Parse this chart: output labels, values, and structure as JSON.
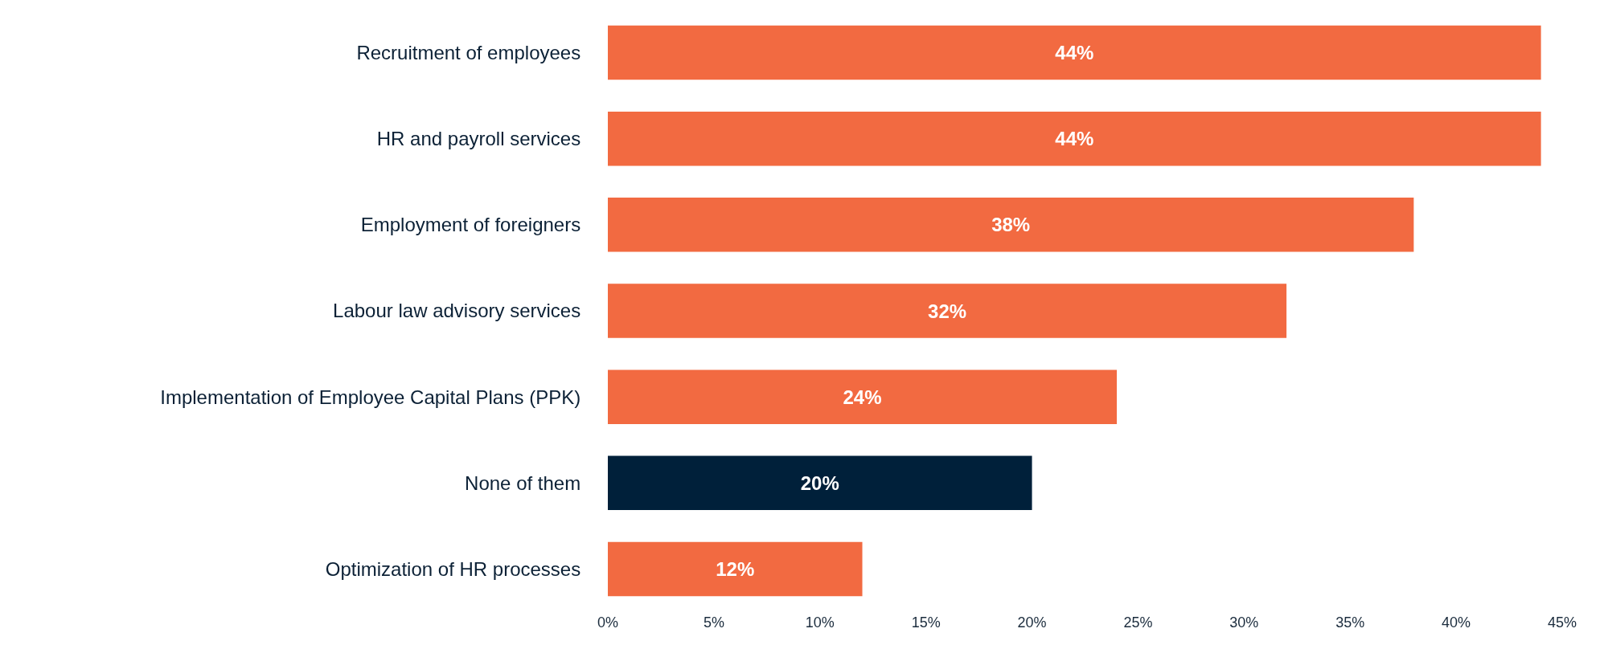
{
  "chart_data": {
    "type": "bar",
    "orientation": "horizontal",
    "categories": [
      "Recruitment of employees",
      "HR and payroll services",
      "Employment of foreigners",
      "Labour law advisory services",
      "Implementation of Employee Capital Plans (PPK)",
      "None of them",
      "Optimization of HR processes"
    ],
    "values": [
      44,
      44,
      38,
      32,
      24,
      20,
      12
    ],
    "value_labels": [
      "44%",
      "44%",
      "38%",
      "32%",
      "24%",
      "20%",
      "12%"
    ],
    "colors": [
      "#f26a41",
      "#f26a41",
      "#f26a41",
      "#f26a41",
      "#f26a41",
      "#00203a",
      "#f26a41"
    ],
    "xlim": [
      0,
      45
    ],
    "xticks": [
      {
        "value": 0,
        "label": "0%"
      },
      {
        "value": 5,
        "label": "5%"
      },
      {
        "value": 10,
        "label": "10%"
      },
      {
        "value": 15,
        "label": "15%"
      },
      {
        "value": 20,
        "label": "20%"
      },
      {
        "value": 25,
        "label": "25%"
      },
      {
        "value": 30,
        "label": "30%"
      },
      {
        "value": 35,
        "label": "35%"
      },
      {
        "value": 40,
        "label": "40%"
      },
      {
        "value": 45,
        "label": "45%"
      }
    ],
    "legend": false
  }
}
